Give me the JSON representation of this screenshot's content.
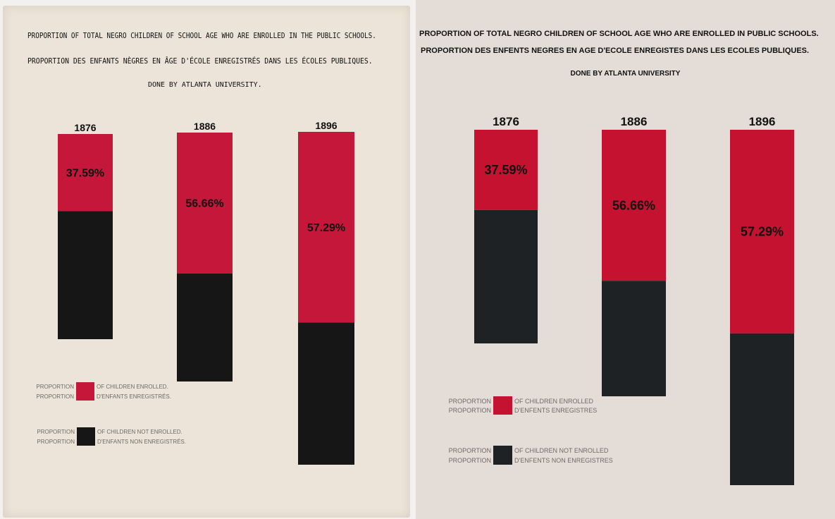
{
  "chart_data": [
    {
      "type": "bar",
      "stacked": true,
      "title": "PROPORTION OF TOTAL NEGRO CHILDREN OF SCHOOL AGE WHO ARE ENROLLED IN THE PUBLIC SCHOOLS.",
      "subtitle": "PROPORTION DES ENFANTS NÈGRES EN ÂGE D'ÉCOLE ENREGISTRÉS DANS LES ÉCOLES PUBLIQUES.",
      "credit": "DONE BY ATLANTA UNIVERSITY.",
      "categories": [
        "1876",
        "1886",
        "1896"
      ],
      "series": [
        {
          "name": "enrolled",
          "values": [
            37.59,
            56.66,
            57.29
          ]
        },
        {
          "name": "not enrolled",
          "values": [
            62.41,
            43.34,
            42.71
          ]
        }
      ],
      "value_labels": [
        "37.59%",
        "56.66%",
        "57.29%"
      ],
      "legend": [
        {
          "line1": "PROPORTION",
          "line2": "PROPORTION",
          "text1": "OF CHILDREN ENROLLED.",
          "text2": "D'ENFANTS ENREGISTRÉS.",
          "color": "#c4173a"
        },
        {
          "line1": "PROPORTION",
          "line2": "PROPORTION",
          "text1": "OF CHILDREN NOT ENROLLED.",
          "text2": "D'ENFANTS NON ENREGISTRÉS.",
          "color": "#161616"
        }
      ],
      "legend_position": "bottom-left"
    },
    {
      "type": "bar",
      "stacked": true,
      "title": "PROPORTION OF TOTAL NEGRO CHILDREN OF SCHOOL AGE WHO ARE ENROLLED IN PUBLIC SCHOOLS.",
      "subtitle": "PROPORTION DES ENFENTS NEGRES EN AGE D'ECOLE ENREGISTES DANS LES ECOLES PUBLIQUES.",
      "credit": "DONE BY ATLANTA UNIVERSITY",
      "categories": [
        "1876",
        "1886",
        "1896"
      ],
      "series": [
        {
          "name": "enrolled",
          "values": [
            37.59,
            56.66,
            57.29
          ]
        },
        {
          "name": "not enrolled",
          "values": [
            62.41,
            43.34,
            42.71
          ]
        }
      ],
      "value_labels": [
        "37.59%",
        "56.66%",
        "57.29%"
      ],
      "legend": [
        {
          "line1": "PROPORTION",
          "line2": "PROPORTION",
          "text1": "OF CHILDREN ENROLLED",
          "text2": "D'ENFENTS ENREGISTRES",
          "color": "#c41230"
        },
        {
          "line1": "PROPORTION",
          "line2": "PROPORTION",
          "text1": "OF CHILDREN NOT ENROLLED",
          "text2": "D'ENFENTS NON ENREGISTRES",
          "color": "#1f2224"
        }
      ],
      "legend_position": "bottom-left"
    }
  ]
}
